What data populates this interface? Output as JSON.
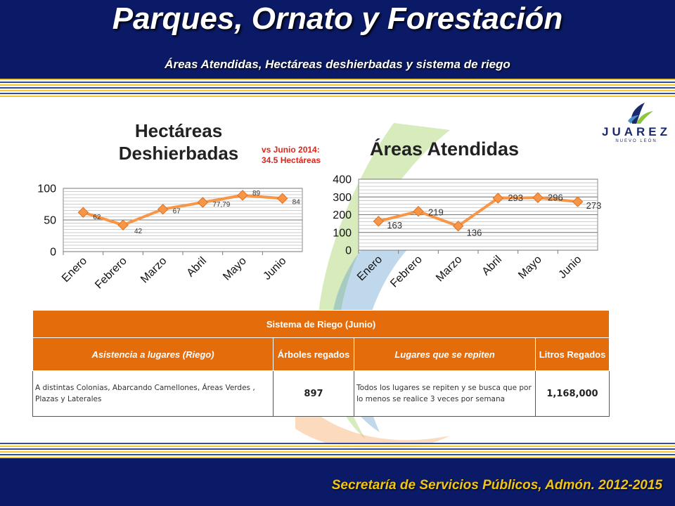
{
  "header": {
    "title": "Parques, Ornato y Forestación",
    "subtitle": "Áreas Atendidas, Hectáreas deshierbadas y sistema de riego"
  },
  "logo": {
    "text": "JUAREZ",
    "subtext": "NUEVO LEÓN"
  },
  "chart_data": [
    {
      "type": "line",
      "title": "Hectáreas Deshierbadas",
      "categories": [
        "Enero",
        "Febrero",
        "Marzo",
        "Abril",
        "Mayo",
        "Junio"
      ],
      "values": [
        62,
        42,
        67,
        77.79,
        89,
        84
      ],
      "data_labels": [
        "62",
        "42",
        "67",
        "77,79",
        "89",
        "84"
      ],
      "y_ticks": [
        "0",
        "50",
        "100"
      ],
      "ylim": [
        0,
        100
      ],
      "grid": true,
      "annotation": "vs Junio 2014: 34.5 Hectáreas",
      "color": "#f79646"
    },
    {
      "type": "line",
      "title": "Áreas Atendidas",
      "categories": [
        "Enero",
        "Febrero",
        "Marzo",
        "Abril",
        "Mayo",
        "Junio"
      ],
      "values": [
        163,
        219,
        136,
        293,
        296,
        273
      ],
      "data_labels": [
        "163",
        "219",
        "136",
        "293",
        "296",
        "273"
      ],
      "y_ticks": [
        "0",
        "100",
        "200",
        "300",
        "400"
      ],
      "ylim": [
        0,
        400
      ],
      "grid": true,
      "color": "#f79646"
    }
  ],
  "table": {
    "title": "Sistema de Riego (Junio)",
    "headers": [
      "Asistencia a lugares (Riego)",
      "Árboles regados",
      "Lugares que se repiten",
      "Litros Regados"
    ],
    "row": [
      "A distintas Colonias, Abarcando Camellones, Áreas Verdes , Plazas y Laterales",
      "897",
      "Todos los lugares se repiten y se busca que por lo menos se realice 3 veces por semana",
      "1,168,000"
    ]
  },
  "footer": {
    "text": "Secretaría de Servicios Públicos, Admón. 2012-2015"
  },
  "colors": {
    "navy": "#0b1a66",
    "orange": "#e46c0a",
    "gold": "#f0c419",
    "line": "#f79646"
  }
}
